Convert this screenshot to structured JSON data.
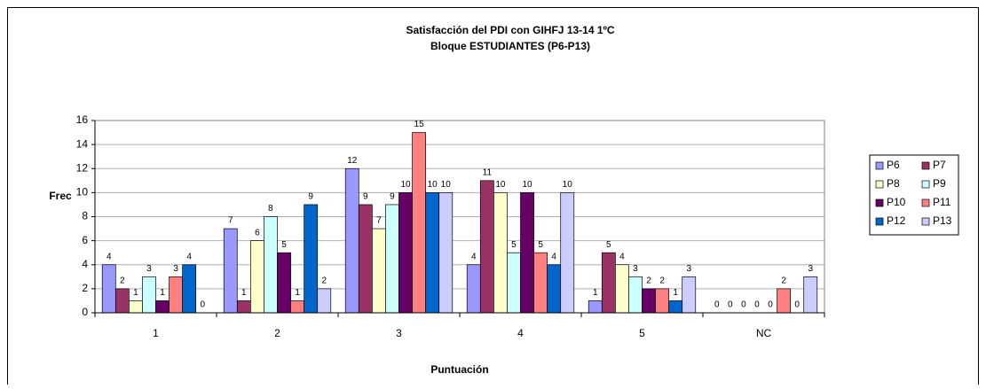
{
  "chart_data": {
    "type": "bar",
    "title": "Satisfacción del PDI con GIHFJ 13-14 1ºC",
    "subtitle": "Bloque ESTUDIANTES (P6-P13)",
    "x_label": "Puntuación",
    "y_label": "Frec",
    "categories": [
      "1",
      "2",
      "3",
      "4",
      "5",
      "NC"
    ],
    "series": [
      {
        "name": "P6",
        "color": "#9999ff",
        "values": [
          4,
          7,
          12,
          4,
          1,
          0
        ]
      },
      {
        "name": "P7",
        "color": "#993366",
        "values": [
          2,
          1,
          9,
          11,
          5,
          0
        ]
      },
      {
        "name": "P8",
        "color": "#ffffcc",
        "values": [
          1,
          6,
          7,
          10,
          4,
          0
        ]
      },
      {
        "name": "P9",
        "color": "#ccffff",
        "values": [
          3,
          8,
          9,
          5,
          3,
          0
        ]
      },
      {
        "name": "P10",
        "color": "#660066",
        "values": [
          1,
          5,
          10,
          10,
          2,
          0
        ]
      },
      {
        "name": "P11",
        "color": "#ff8080",
        "values": [
          3,
          1,
          15,
          5,
          2,
          2
        ]
      },
      {
        "name": "P12",
        "color": "#0066cc",
        "values": [
          4,
          9,
          10,
          4,
          1,
          0
        ]
      },
      {
        "name": "P13",
        "color": "#ccccff",
        "values": [
          0,
          2,
          10,
          10,
          3,
          3
        ]
      }
    ],
    "ylim": [
      0,
      16
    ],
    "yticks": [
      0,
      2,
      4,
      6,
      8,
      10,
      12,
      14,
      16
    ],
    "grid": true,
    "legend": "right"
  }
}
